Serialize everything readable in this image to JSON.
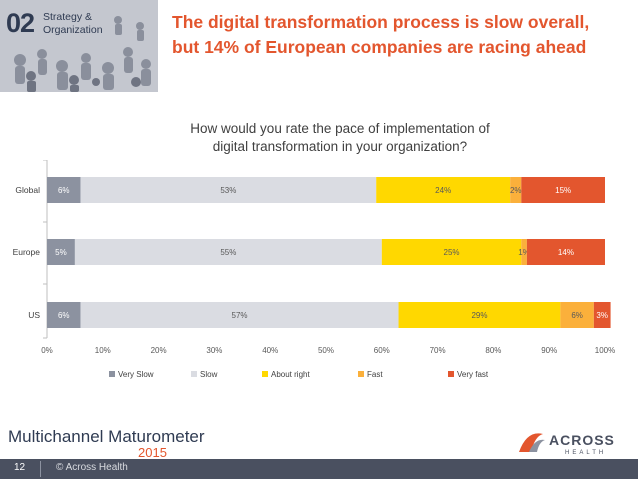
{
  "header": {
    "section_number": "02",
    "section_line1": "Strategy &",
    "section_line2": "Organization",
    "title_line1": "The digital transformation process is slow overall,",
    "title_line2": "but 14% of European companies are racing ahead"
  },
  "chart_data": {
    "type": "bar",
    "orientation": "horizontal",
    "stacked": "percent",
    "title_line1": "How would you rate the pace of implementation of",
    "title_line2": "digital transformation in your organization?",
    "categories": [
      "Global",
      "Europe",
      "US"
    ],
    "series": [
      {
        "name": "Very Slow",
        "color": "#8c92a0",
        "values": [
          6,
          5,
          6
        ],
        "labels": [
          "6%",
          "5%",
          "6%"
        ]
      },
      {
        "name": "Slow",
        "color": "#dadce2",
        "values": [
          53,
          55,
          57
        ],
        "labels": [
          "53%",
          "55%",
          "57%"
        ]
      },
      {
        "name": "About right",
        "color": "#ffd800",
        "values": [
          24,
          25,
          29
        ],
        "labels": [
          "24%",
          "25%",
          "29%"
        ]
      },
      {
        "name": "Fast",
        "color": "#fbb03b",
        "values": [
          2,
          1,
          6
        ],
        "labels": [
          "2%",
          "1%",
          "6%"
        ]
      },
      {
        "name": "Very fast",
        "color": "#e3562e",
        "values": [
          15,
          14,
          3
        ],
        "labels": [
          "15%",
          "14%",
          "3%"
        ]
      }
    ],
    "xlim": [
      0,
      100
    ],
    "ticks": [
      "0%",
      "10%",
      "20%",
      "30%",
      "40%",
      "50%",
      "60%",
      "70%",
      "80%",
      "90%",
      "100%"
    ],
    "legend_position": "bottom",
    "grid": false
  },
  "footer": {
    "logo_text": "Multichannel Maturometer",
    "logo_year": "2015",
    "brand_name": "ACROSS",
    "brand_sub": "HEALTH",
    "page_number": "12",
    "copyright": "© Across Health"
  }
}
